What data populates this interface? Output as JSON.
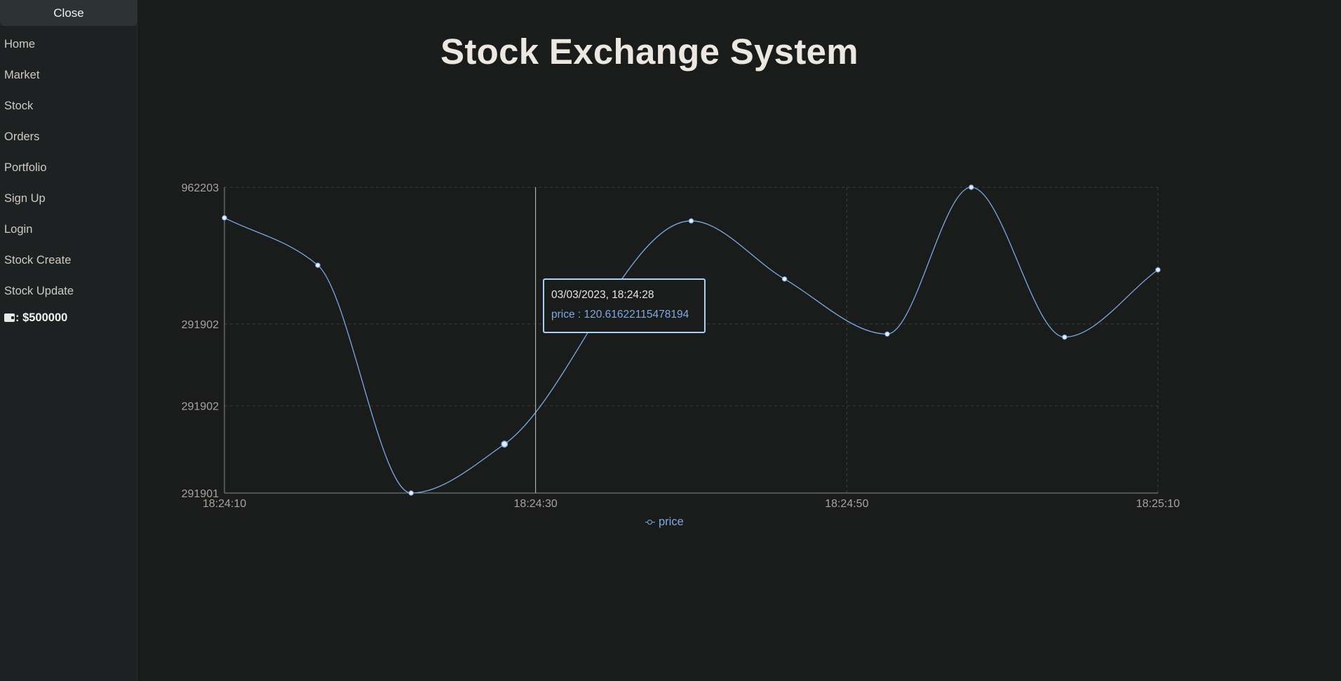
{
  "sidebar": {
    "close_label": "Close",
    "items": [
      {
        "label": "Home"
      },
      {
        "label": "Market"
      },
      {
        "label": "Stock"
      },
      {
        "label": "Orders"
      },
      {
        "label": "Portfolio"
      },
      {
        "label": "Sign Up"
      },
      {
        "label": "Login"
      },
      {
        "label": "Stock Create"
      },
      {
        "label": "Stock Update"
      }
    ],
    "wallet": {
      "icon": "wallet-icon",
      "text": ": $500000"
    }
  },
  "header": {
    "title": "Stock Exchange System"
  },
  "tooltip": {
    "time": "03/03/2023, 18:24:28",
    "price_text": "price : 120.61622115478194"
  },
  "colors": {
    "background": "#1a1c1c",
    "sidebar": "#1e2122",
    "line": "#7ea8e0",
    "tooltip_border": "#a9d0f2",
    "grid": "#3a3d3e"
  },
  "chart_data": {
    "type": "line",
    "x_tick_labels": [
      "18:24:10",
      "18:24:30",
      "18:24:50",
      "18:25:10"
    ],
    "y_tick_labels": [
      "962203",
      "291902",
      "291902",
      "291901"
    ],
    "x_ticks_seconds": [
      0,
      20,
      40,
      60
    ],
    "x_range_seconds": [
      0,
      60
    ],
    "series": [
      {
        "name": "price",
        "x_seconds": [
          0,
          6,
          12,
          18,
          30,
          36,
          42.6,
          48,
          54,
          60
        ],
        "y_relative": [
          0.9,
          0.745,
          0.0,
          0.16,
          0.89,
          0.7,
          0.52,
          1.0,
          0.51,
          0.73
        ]
      }
    ],
    "hover_x_seconds": 20,
    "hover_point_index": 3,
    "grid": true,
    "legend": "bottom-center"
  }
}
